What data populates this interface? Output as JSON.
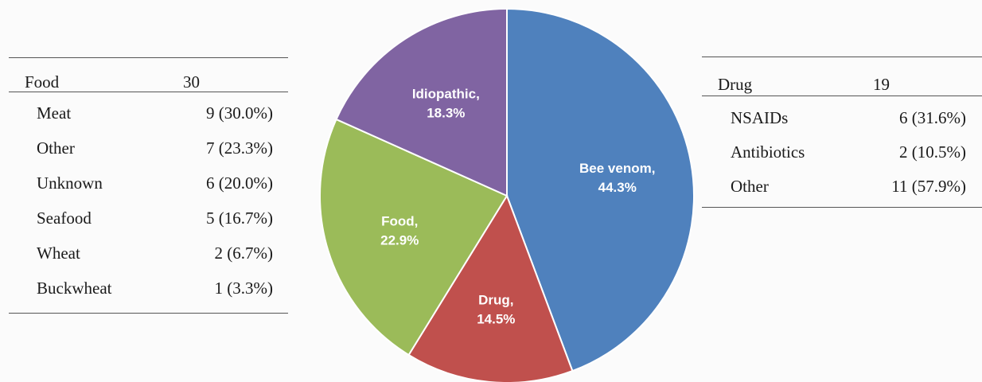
{
  "food_table": {
    "header_label": "Food",
    "header_value": "30",
    "rows": [
      {
        "label": "Meat",
        "value": "9 (30.0%)"
      },
      {
        "label": "Other",
        "value": "7 (23.3%)"
      },
      {
        "label": "Unknown",
        "value": "6 (20.0%)"
      },
      {
        "label": "Seafood",
        "value": "5 (16.7%)"
      },
      {
        "label": "Wheat",
        "value": "2 (6.7%)"
      },
      {
        "label": "Buckwheat",
        "value": "1 (3.3%)"
      }
    ]
  },
  "drug_table": {
    "header_label": "Drug",
    "header_value": "19",
    "rows": [
      {
        "label": "NSAIDs",
        "value": "6 (31.6%)"
      },
      {
        "label": "Antibiotics",
        "value": "2 (10.5%)"
      },
      {
        "label": "Other",
        "value": "11 (57.9%)"
      }
    ]
  },
  "chart_data": {
    "type": "pie",
    "title": "",
    "slices": [
      {
        "label": "Bee venom,",
        "value_text": "44.3%",
        "value": 44.3,
        "color": "#4f81bd"
      },
      {
        "label": "Drug,",
        "value_text": "14.5%",
        "value": 14.5,
        "color": "#c0504d"
      },
      {
        "label": "Food,",
        "value_text": "22.9%",
        "value": 22.9,
        "color": "#9bbb59"
      },
      {
        "label": "Idiopathic,",
        "value_text": "18.3%",
        "value": 18.3,
        "color": "#8064a2"
      }
    ]
  }
}
